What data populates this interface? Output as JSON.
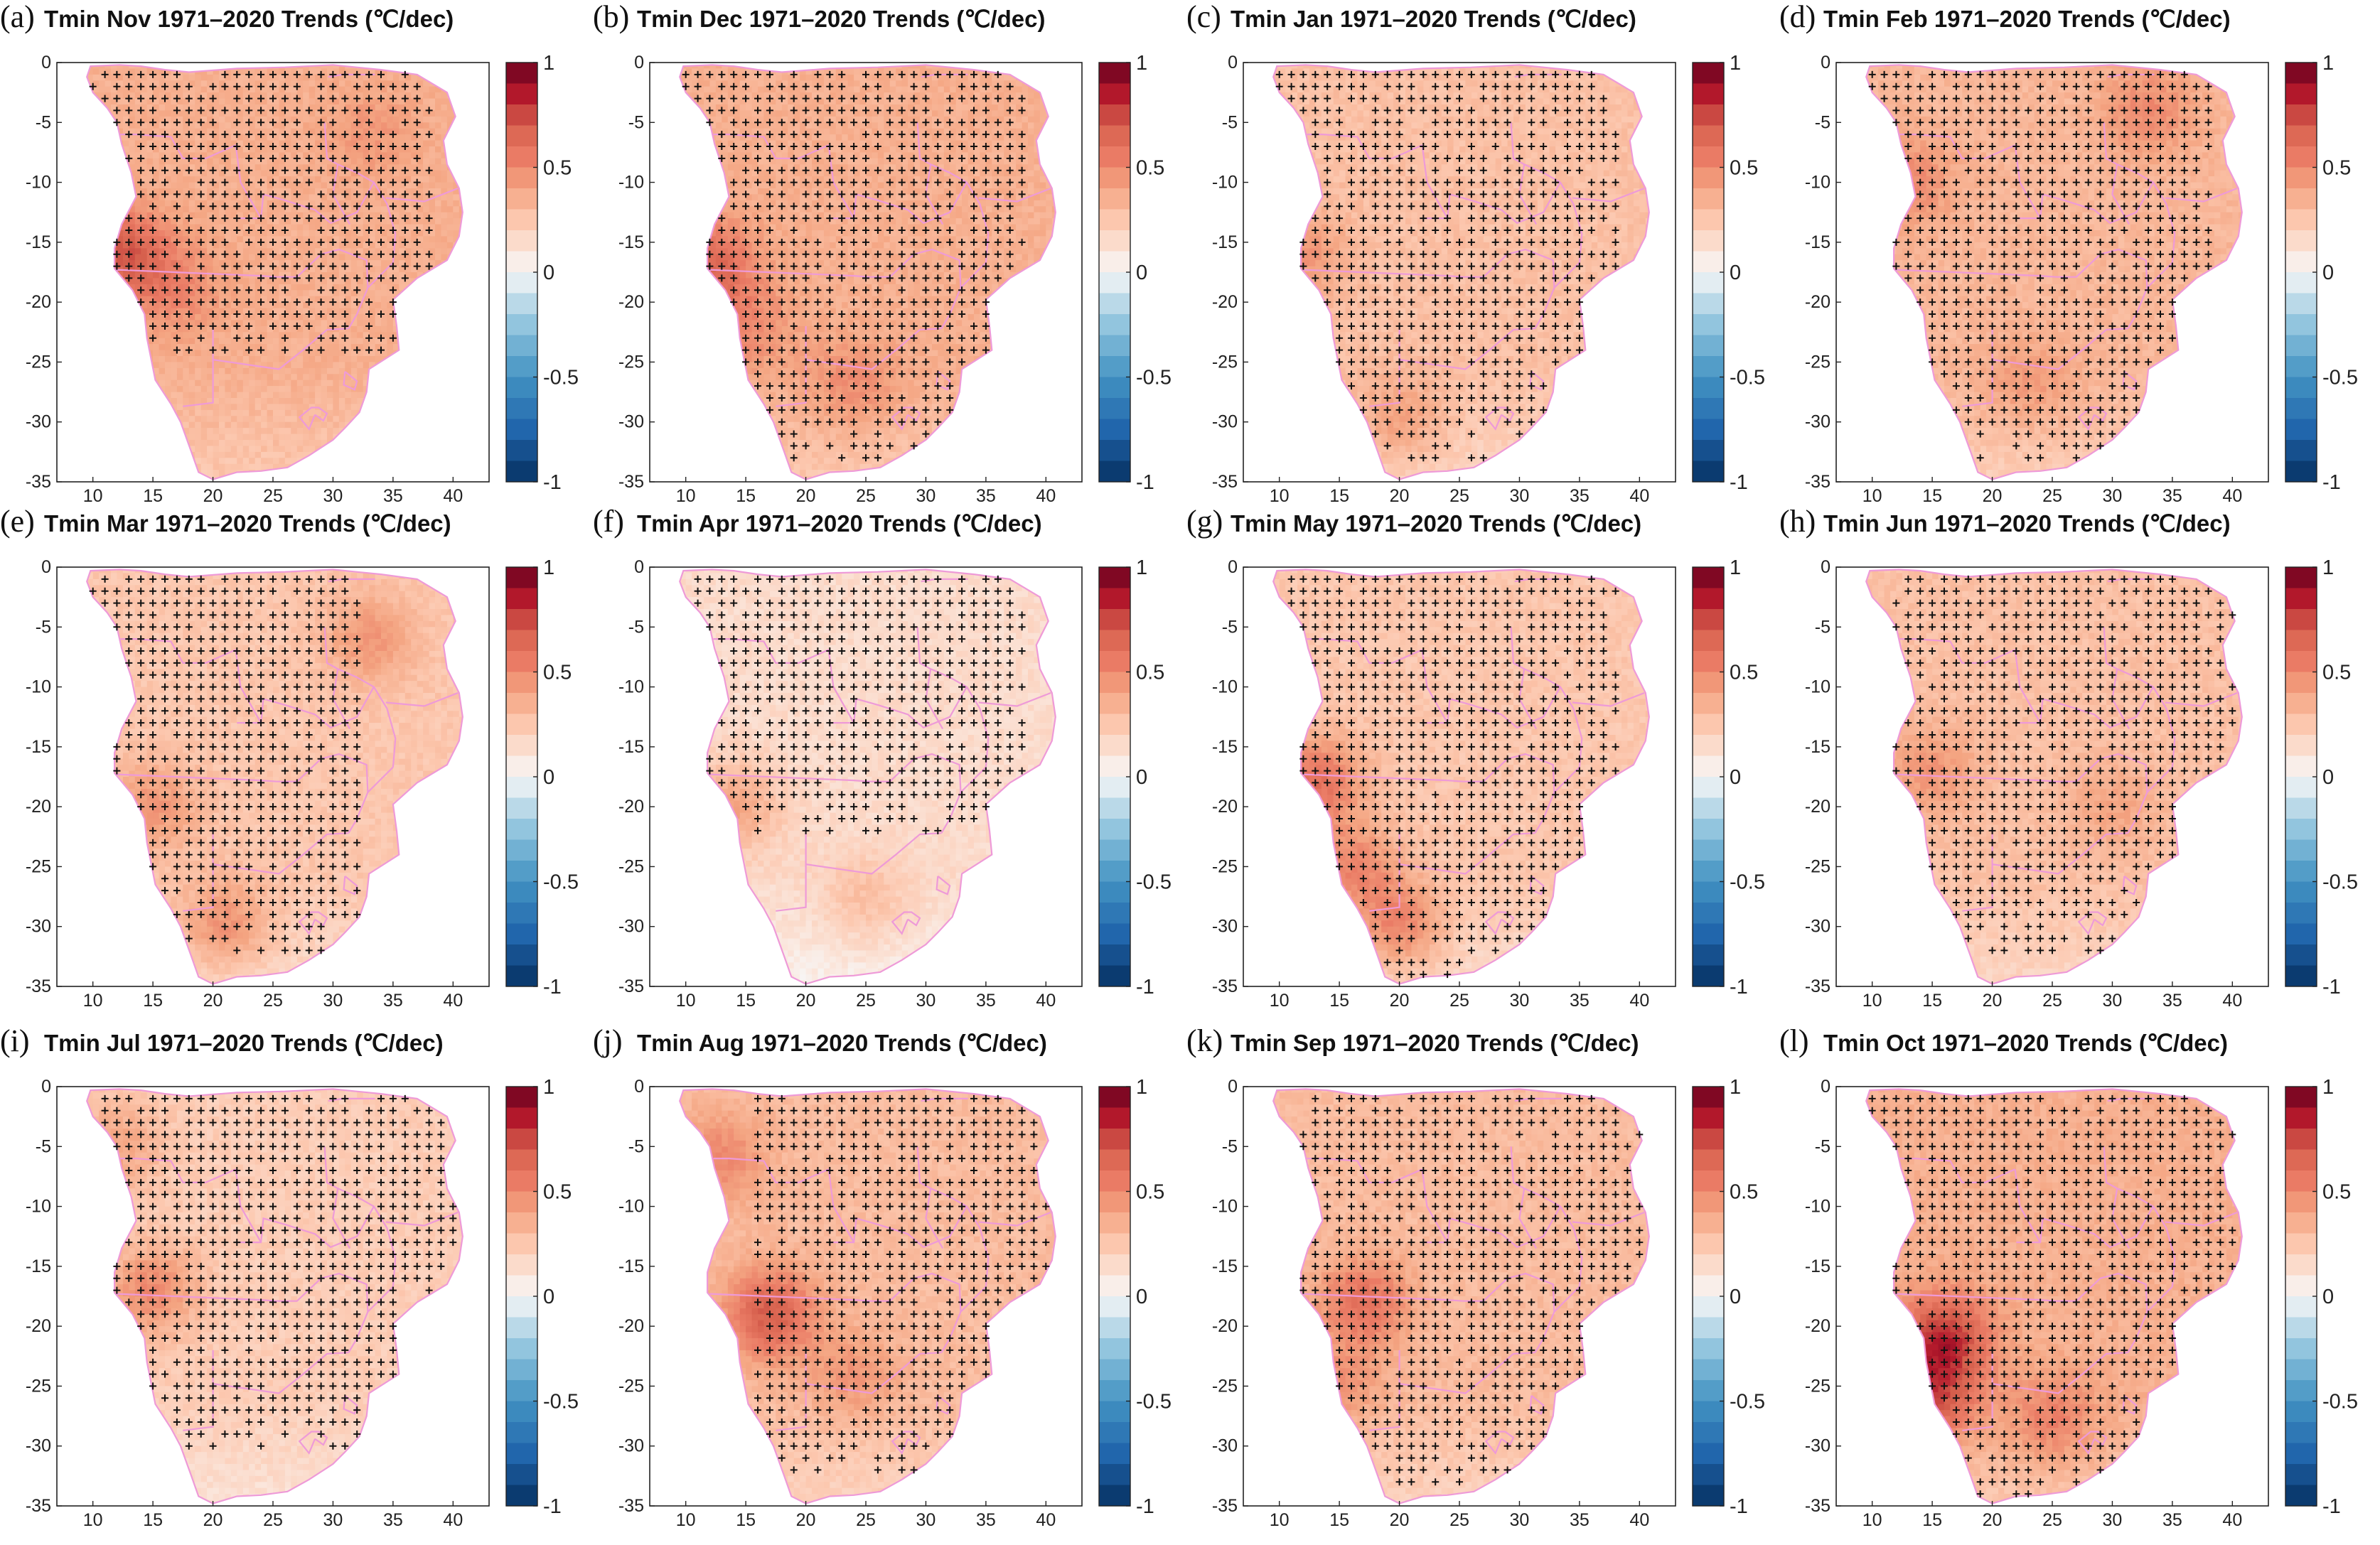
{
  "figure": {
    "variable": "Tmin",
    "period": "1971–2020",
    "units": "(℃/dec)",
    "significance_marker": "+",
    "colors": {
      "warm_max": "#67001f",
      "warm_mid": "#f4a582",
      "neutral": "#f7f7f7",
      "cool_mid": "#92c5de",
      "cool_max": "#053061",
      "border": "#ee9ad8"
    }
  },
  "chart_data": [
    {
      "letter": "(a)",
      "title": "Tmin Nov 1971–2020 Trends (℃/dec)",
      "month": "Nov",
      "type": "heatmap",
      "x_ticks": [
        "10",
        "15",
        "20",
        "25",
        "30",
        "35",
        "40"
      ],
      "y_ticks": [
        "0",
        "-5",
        "-10",
        "-15",
        "-20",
        "-25",
        "-30",
        "-35"
      ],
      "xlim": [
        7,
        43
      ],
      "ylim": [
        -35,
        0
      ],
      "colorbar": {
        "min": -1,
        "max": 1,
        "ticks": [
          "1",
          "0.5",
          "0",
          "-0.5",
          "-1"
        ]
      },
      "mean_trend": 0.35,
      "hotspots": [
        {
          "lon": 12.5,
          "lat": -16,
          "trend": 0.7
        },
        {
          "lon": 17,
          "lat": -19,
          "trend": 0.5
        },
        {
          "lon": 33,
          "lat": -6,
          "trend": 0.45
        }
      ],
      "significant_region": {
        "lat_min": -24,
        "lat_max": -1,
        "lon_min": 10,
        "lon_max": 38
      }
    },
    {
      "letter": "(b)",
      "title": "Tmin Dec 1971–2020 Trends (℃/dec)",
      "month": "Dec",
      "type": "heatmap",
      "x_ticks": [
        "10",
        "15",
        "20",
        "25",
        "30",
        "35",
        "40"
      ],
      "y_ticks": [
        "0",
        "-5",
        "-10",
        "-15",
        "-20",
        "-25",
        "-30",
        "-35"
      ],
      "xlim": [
        7,
        43
      ],
      "ylim": [
        -35,
        0
      ],
      "colorbar": {
        "min": -1,
        "max": 1,
        "ticks": [
          "1",
          "0.5",
          "0",
          "-0.5",
          "-1"
        ]
      },
      "mean_trend": 0.35,
      "hotspots": [
        {
          "lon": 12,
          "lat": -17,
          "trend": 0.65
        },
        {
          "lon": 15,
          "lat": -22,
          "trend": 0.5
        },
        {
          "lon": 24,
          "lat": -27,
          "trend": 0.5
        }
      ],
      "significant_region": {
        "lat_min": -33,
        "lat_max": -1,
        "lon_min": 10,
        "lon_max": 38
      }
    },
    {
      "letter": "(c)",
      "title": "Tmin Jan 1971–2020 Trends (℃/dec)",
      "month": "Jan",
      "type": "heatmap",
      "x_ticks": [
        "10",
        "15",
        "20",
        "25",
        "30",
        "35",
        "40"
      ],
      "y_ticks": [
        "0",
        "-5",
        "-10",
        "-15",
        "-20",
        "-25",
        "-30",
        "-35"
      ],
      "xlim": [
        7,
        43
      ],
      "ylim": [
        -35,
        0
      ],
      "colorbar": {
        "min": -1,
        "max": 1,
        "ticks": [
          "1",
          "0.5",
          "0",
          "-0.5",
          "-1"
        ]
      },
      "mean_trend": 0.28,
      "hotspots": [
        {
          "lon": 12,
          "lat": -16,
          "trend": 0.45
        },
        {
          "lon": 20,
          "lat": -30,
          "trend": 0.45
        }
      ],
      "significant_region": {
        "lat_min": -33,
        "lat_max": -1,
        "lon_min": 10,
        "lon_max": 38
      }
    },
    {
      "letter": "(d)",
      "title": "Tmin Feb 1971–2020 Trends (℃/dec)",
      "month": "Feb",
      "type": "heatmap",
      "x_ticks": [
        "10",
        "15",
        "20",
        "25",
        "30",
        "35",
        "40"
      ],
      "y_ticks": [
        "0",
        "-5",
        "-10",
        "-15",
        "-20",
        "-25",
        "-30",
        "-35"
      ],
      "xlim": [
        7,
        43
      ],
      "ylim": [
        -35,
        0
      ],
      "colorbar": {
        "min": -1,
        "max": 1,
        "ticks": [
          "1",
          "0.5",
          "0",
          "-0.5",
          "-1"
        ]
      },
      "mean_trend": 0.32,
      "hotspots": [
        {
          "lon": 13,
          "lat": -10,
          "trend": 0.5
        },
        {
          "lon": 33,
          "lat": -4,
          "trend": 0.5
        },
        {
          "lon": 23,
          "lat": -27,
          "trend": 0.45
        }
      ],
      "significant_region": {
        "lat_min": -33,
        "lat_max": -1,
        "lon_min": 10,
        "lon_max": 38
      }
    },
    {
      "letter": "(e)",
      "title": "Tmin Mar 1971–2020 Trends (℃/dec)",
      "month": "Mar",
      "type": "heatmap",
      "x_ticks": [
        "10",
        "15",
        "20",
        "25",
        "30",
        "35",
        "40"
      ],
      "y_ticks": [
        "0",
        "-5",
        "-10",
        "-15",
        "-20",
        "-25",
        "-30",
        "-35"
      ],
      "xlim": [
        7,
        43
      ],
      "ylim": [
        -35,
        0
      ],
      "colorbar": {
        "min": -1,
        "max": 1,
        "ticks": [
          "1",
          "0.5",
          "0",
          "-0.5",
          "-1"
        ]
      },
      "mean_trend": 0.25,
      "hotspots": [
        {
          "lon": 15,
          "lat": -20,
          "trend": 0.45
        },
        {
          "lon": 21,
          "lat": -30,
          "trend": 0.5
        },
        {
          "lon": 33,
          "lat": -6,
          "trend": 0.45
        }
      ],
      "significant_region": {
        "lat_min": -32,
        "lat_max": -1,
        "lon_min": 10,
        "lon_max": 32
      }
    },
    {
      "letter": "(f)",
      "title": "Tmin Apr 1971–2020 Trends (℃/dec)",
      "month": "Apr",
      "type": "heatmap",
      "x_ticks": [
        "10",
        "15",
        "20",
        "25",
        "30",
        "35",
        "40"
      ],
      "y_ticks": [
        "0",
        "-5",
        "-10",
        "-15",
        "-20",
        "-25",
        "-30",
        "-35"
      ],
      "xlim": [
        7,
        43
      ],
      "ylim": [
        -35,
        0
      ],
      "colorbar": {
        "min": -1,
        "max": 1,
        "ticks": [
          "1",
          "0.5",
          "0",
          "-0.5",
          "-1"
        ]
      },
      "mean_trend": 0.15,
      "hotspots": [
        {
          "lon": 14,
          "lat": -20,
          "trend": 0.4
        },
        {
          "lon": 25,
          "lat": -28,
          "trend": 0.3
        }
      ],
      "significant_region": {
        "lat_min": -22,
        "lat_max": -1,
        "lon_min": 10,
        "lon_max": 38
      }
    },
    {
      "letter": "(g)",
      "title": "Tmin May 1971–2020 Trends (℃/dec)",
      "month": "May",
      "type": "heatmap",
      "x_ticks": [
        "10",
        "15",
        "20",
        "25",
        "30",
        "35",
        "40"
      ],
      "y_ticks": [
        "0",
        "-5",
        "-10",
        "-15",
        "-20",
        "-25",
        "-30",
        "-35"
      ],
      "xlim": [
        7,
        43
      ],
      "ylim": [
        -35,
        0
      ],
      "colorbar": {
        "min": -1,
        "max": 1,
        "ticks": [
          "1",
          "0.5",
          "0",
          "-0.5",
          "-1"
        ]
      },
      "mean_trend": 0.25,
      "hotspots": [
        {
          "lon": 13,
          "lat": -18,
          "trend": 0.6
        },
        {
          "lon": 20,
          "lat": -30,
          "trend": 0.55
        },
        {
          "lon": 16,
          "lat": -25,
          "trend": 0.5
        }
      ],
      "significant_region": {
        "lat_min": -34,
        "lat_max": -1,
        "lon_min": 10,
        "lon_max": 38
      }
    },
    {
      "letter": "(h)",
      "title": "Tmin Jun 1971–2020 Trends (℃/dec)",
      "month": "Jun",
      "type": "heatmap",
      "x_ticks": [
        "10",
        "15",
        "20",
        "25",
        "30",
        "35",
        "40"
      ],
      "y_ticks": [
        "0",
        "-5",
        "-10",
        "-15",
        "-20",
        "-25",
        "-30",
        "-35"
      ],
      "xlim": [
        7,
        43
      ],
      "ylim": [
        -35,
        0
      ],
      "colorbar": {
        "min": -1,
        "max": 1,
        "ticks": [
          "1",
          "0.5",
          "0",
          "-0.5",
          "-1"
        ]
      },
      "mean_trend": 0.28,
      "hotspots": [
        {
          "lon": 15,
          "lat": -17,
          "trend": 0.45
        },
        {
          "lon": 30,
          "lat": -20,
          "trend": 0.4
        }
      ],
      "significant_region": {
        "lat_min": -32,
        "lat_max": -1,
        "lon_min": 12,
        "lon_max": 40
      }
    },
    {
      "letter": "(i)",
      "title": "Tmin Jul 1971–2020 Trends (℃/dec)",
      "month": "Jul",
      "type": "heatmap",
      "x_ticks": [
        "10",
        "15",
        "20",
        "25",
        "30",
        "35",
        "40"
      ],
      "y_ticks": [
        "0",
        "-5",
        "-10",
        "-15",
        "-20",
        "-25",
        "-30",
        "-35"
      ],
      "xlim": [
        7,
        43
      ],
      "ylim": [
        -35,
        0
      ],
      "colorbar": {
        "min": -1,
        "max": 1,
        "ticks": [
          "1",
          "0.5",
          "0",
          "-0.5",
          "-1"
        ]
      },
      "mean_trend": 0.22,
      "hotspots": [
        {
          "lon": 15,
          "lat": -17,
          "trend": 0.5
        },
        {
          "lon": 12,
          "lat": -5,
          "trend": 0.4
        }
      ],
      "significant_region": {
        "lat_min": -30,
        "lat_max": -1,
        "lon_min": 10,
        "lon_max": 40
      }
    },
    {
      "letter": "(j)",
      "title": "Tmin Aug 1971–2020 Trends (℃/dec)",
      "month": "Aug",
      "type": "heatmap",
      "x_ticks": [
        "10",
        "15",
        "20",
        "25",
        "30",
        "35",
        "40"
      ],
      "y_ticks": [
        "0",
        "-5",
        "-10",
        "-15",
        "-20",
        "-25",
        "-30",
        "-35"
      ],
      "xlim": [
        7,
        43
      ],
      "ylim": [
        -35,
        0
      ],
      "colorbar": {
        "min": -1,
        "max": 1,
        "ticks": [
          "1",
          "0.5",
          "0",
          "-0.5",
          "-1"
        ]
      },
      "mean_trend": 0.3,
      "hotspots": [
        {
          "lon": 17,
          "lat": -19,
          "trend": 0.7
        },
        {
          "lon": 13,
          "lat": -6,
          "trend": 0.5
        },
        {
          "lon": 24,
          "lat": -24,
          "trend": 0.45
        }
      ],
      "significant_region": {
        "lat_min": -32,
        "lat_max": -1,
        "lon_min": 16,
        "lon_max": 40
      }
    },
    {
      "letter": "(k)",
      "title": "Tmin Sep 1971–2020 Trends (℃/dec)",
      "month": "Sep",
      "type": "heatmap",
      "x_ticks": [
        "10",
        "15",
        "20",
        "25",
        "30",
        "35",
        "40"
      ],
      "y_ticks": [
        "0",
        "-5",
        "-10",
        "-15",
        "-20",
        "-25",
        "-30",
        "-35"
      ],
      "xlim": [
        7,
        43
      ],
      "ylim": [
        -35,
        0
      ],
      "colorbar": {
        "min": -1,
        "max": 1,
        "ticks": [
          "1",
          "0.5",
          "0",
          "-0.5",
          "-1"
        ]
      },
      "mean_trend": 0.3,
      "hotspots": [
        {
          "lon": 17,
          "lat": -18,
          "trend": 0.6
        },
        {
          "lon": 15,
          "lat": -25,
          "trend": 0.45
        }
      ],
      "significant_region": {
        "lat_min": -33,
        "lat_max": -1,
        "lon_min": 12,
        "lon_max": 40
      }
    },
    {
      "letter": "(l)",
      "title": "Tmin Oct 1971–2020 Trends (℃/dec)",
      "month": "Oct",
      "type": "heatmap",
      "x_ticks": [
        "10",
        "15",
        "20",
        "25",
        "30",
        "35",
        "40"
      ],
      "y_ticks": [
        "0",
        "-5",
        "-10",
        "-15",
        "-20",
        "-25",
        "-30",
        "-35"
      ],
      "xlim": [
        7,
        43
      ],
      "ylim": [
        -35,
        0
      ],
      "colorbar": {
        "min": -1,
        "max": 1,
        "ticks": [
          "1",
          "0.5",
          "0",
          "-0.5",
          "-1"
        ]
      },
      "mean_trend": 0.35,
      "hotspots": [
        {
          "lon": 16,
          "lat": -21,
          "trend": 0.8
        },
        {
          "lon": 15,
          "lat": -26,
          "trend": 0.7
        },
        {
          "lon": 25,
          "lat": -28,
          "trend": 0.55
        }
      ],
      "significant_region": {
        "lat_min": -34,
        "lat_max": -1,
        "lon_min": 10,
        "lon_max": 40
      }
    }
  ]
}
